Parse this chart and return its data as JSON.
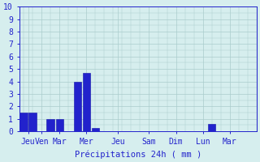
{
  "bar_positions": [
    0,
    1,
    3,
    4,
    6,
    7,
    8,
    9,
    12,
    13,
    14,
    15,
    18,
    19,
    21,
    24
  ],
  "values": [
    1.5,
    1.5,
    1.0,
    1.0,
    4.0,
    4.7,
    0.3,
    0.0,
    0.0,
    0.0,
    0.0,
    0.0,
    0.0,
    0.0,
    0.6,
    0.0
  ],
  "x_tick_labels": [
    "Jeu",
    "Ven",
    "Mar",
    "Mer",
    "Jeu",
    "Sam",
    "Dim",
    "Lun",
    "Mar"
  ],
  "x_tick_positions": [
    0.5,
    2,
    4,
    7,
    10.5,
    14,
    17,
    20,
    23
  ],
  "bar_color": "#2222cc",
  "bar_edge_color": "#1111aa",
  "background_color": "#d6eeee",
  "grid_color": "#aacccc",
  "xlabel": "Précipitations 24h ( mm )",
  "ylim": [
    0,
    10
  ],
  "yticks": [
    0,
    1,
    2,
    3,
    4,
    5,
    6,
    7,
    8,
    9,
    10
  ],
  "tick_color": "#2222cc",
  "xlabel_color": "#2222cc",
  "xlabel_fontsize": 7.5,
  "tick_fontsize": 7.0,
  "xlim": [
    -0.5,
    26
  ],
  "bar_width": 0.85
}
